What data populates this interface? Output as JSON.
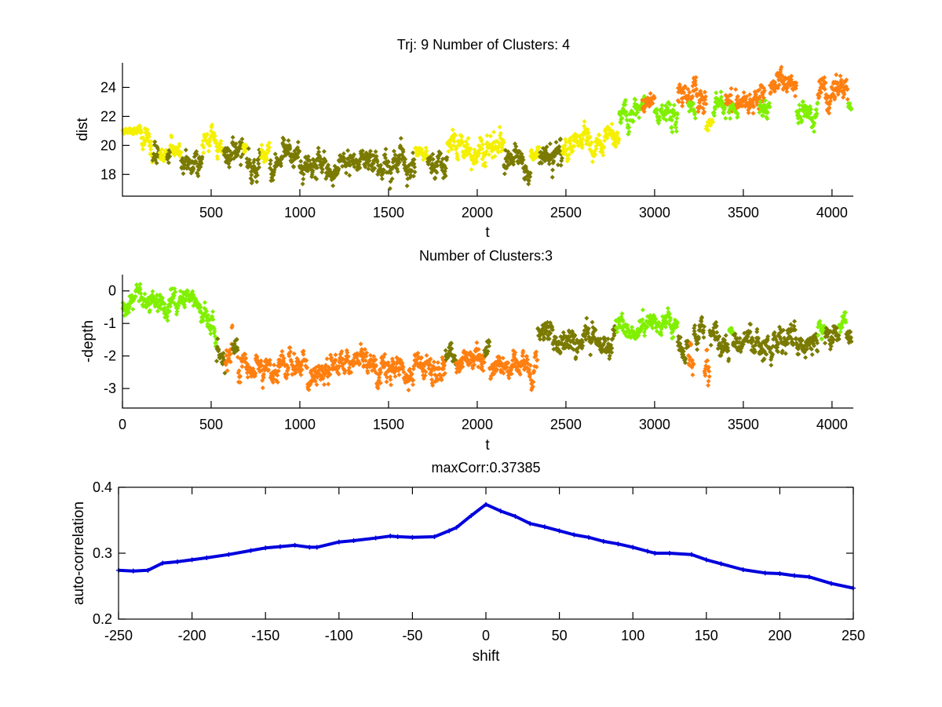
{
  "figure": {
    "background": "#ffffff"
  },
  "chart_data": [
    {
      "type": "scatter",
      "title": "Trj: 9 Number of Clusters: 4",
      "xlabel": "t",
      "ylabel": "dist",
      "xlim": [
        0,
        4120
      ],
      "ylim": [
        16.5,
        25.7
      ],
      "xticks": [
        500,
        1000,
        1500,
        2000,
        2500,
        3000,
        3500,
        4000
      ],
      "xtick_labels": [
        "500",
        "1000",
        "1500",
        "2000",
        "2500",
        "3000",
        "3500",
        "4000"
      ],
      "yticks": [
        18,
        20,
        22,
        24
      ],
      "ytick_labels": [
        "18",
        "20",
        "22",
        "24"
      ],
      "box": false,
      "clusters": [
        {
          "name": "cluster-1",
          "color": "#f5f000"
        },
        {
          "name": "cluster-2",
          "color": "#7a7a00"
        },
        {
          "name": "cluster-3",
          "color": "#80f000"
        },
        {
          "name": "cluster-4",
          "color": "#ff7f10"
        }
      ],
      "segments": [
        {
          "t": [
            0,
            100
          ],
          "y": [
            21.0,
            21.0
          ],
          "spread": 0.15,
          "cluster": 0
        },
        {
          "t": [
            100,
            170
          ],
          "y": [
            20.8,
            19.6
          ],
          "spread": 0.5,
          "cluster": 0
        },
        {
          "t": [
            170,
            210
          ],
          "y": [
            19.0,
            19.0
          ],
          "spread": 0.5,
          "cluster": 1
        },
        {
          "t": [
            210,
            250
          ],
          "y": [
            19.6,
            19.6
          ],
          "spread": 0.4,
          "cluster": 0
        },
        {
          "t": [
            250,
            270
          ],
          "y": [
            19.0,
            19.0
          ],
          "spread": 0.5,
          "cluster": 1
        },
        {
          "t": [
            270,
            330
          ],
          "y": [
            20.2,
            19.6
          ],
          "spread": 0.4,
          "cluster": 0
        },
        {
          "t": [
            330,
            450
          ],
          "y": [
            19.0,
            18.9
          ],
          "spread": 0.5,
          "cluster": 1
        },
        {
          "t": [
            450,
            570
          ],
          "y": [
            19.8,
            19.6
          ],
          "spread": 0.4,
          "cluster": 0
        },
        {
          "t": [
            570,
            680
          ],
          "y": [
            18.9,
            19.2
          ],
          "spread": 0.5,
          "cluster": 1
        },
        {
          "t": [
            680,
            700
          ],
          "y": [
            19.7,
            19.7
          ],
          "spread": 0.3,
          "cluster": 0
        },
        {
          "t": [
            700,
            780
          ],
          "y": [
            18.7,
            18.7
          ],
          "spread": 0.6,
          "cluster": 1
        },
        {
          "t": [
            780,
            830
          ],
          "y": [
            19.6,
            19.6
          ],
          "spread": 0.3,
          "cluster": 0
        },
        {
          "t": [
            830,
            1150
          ],
          "y": [
            18.8,
            18.4
          ],
          "spread": 0.55,
          "cluster": 1
        },
        {
          "t": [
            1150,
            1300
          ],
          "y": [
            18.2,
            18.9
          ],
          "spread": 0.5,
          "cluster": 1
        },
        {
          "t": [
            1300,
            1650
          ],
          "y": [
            19.0,
            18.5
          ],
          "spread": 0.5,
          "cluster": 1
        },
        {
          "t": [
            1650,
            1720
          ],
          "y": [
            19.6,
            19.6
          ],
          "spread": 0.3,
          "cluster": 0
        },
        {
          "t": [
            1720,
            1830
          ],
          "y": [
            18.9,
            18.9
          ],
          "spread": 0.5,
          "cluster": 1
        },
        {
          "t": [
            1830,
            2150
          ],
          "y": [
            20.0,
            20.2
          ],
          "spread": 0.55,
          "cluster": 0
        },
        {
          "t": [
            2150,
            2300
          ],
          "y": [
            19.0,
            18.7
          ],
          "spread": 0.5,
          "cluster": 1
        },
        {
          "t": [
            2300,
            2350
          ],
          "y": [
            19.5,
            19.5
          ],
          "spread": 0.3,
          "cluster": 0
        },
        {
          "t": [
            2350,
            2480
          ],
          "y": [
            18.8,
            19.0
          ],
          "spread": 0.5,
          "cluster": 1
        },
        {
          "t": [
            2480,
            2800
          ],
          "y": [
            19.8,
            21.0
          ],
          "spread": 0.45,
          "cluster": 0
        },
        {
          "t": [
            2800,
            2950
          ],
          "y": [
            22.0,
            22.6
          ],
          "spread": 0.45,
          "cluster": 2
        },
        {
          "t": [
            2930,
            3000
          ],
          "y": [
            23.1,
            23.1
          ],
          "spread": 0.3,
          "cluster": 3
        },
        {
          "t": [
            3000,
            3130
          ],
          "y": [
            22.2,
            21.8
          ],
          "spread": 0.5,
          "cluster": 2
        },
        {
          "t": [
            3130,
            3250
          ],
          "y": [
            23.6,
            23.4
          ],
          "spread": 0.5,
          "cluster": 3
        },
        {
          "t": [
            3190,
            3230
          ],
          "y": [
            22.4,
            22.4
          ],
          "spread": 0.4,
          "cluster": 2
        },
        {
          "t": [
            3250,
            3290
          ],
          "y": [
            23.2,
            23.2
          ],
          "spread": 0.4,
          "cluster": 3
        },
        {
          "t": [
            3290,
            3330
          ],
          "y": [
            21.3,
            21.3
          ],
          "spread": 0.25,
          "cluster": 0
        },
        {
          "t": [
            3330,
            3400
          ],
          "y": [
            22.3,
            22.7
          ],
          "spread": 0.45,
          "cluster": 2
        },
        {
          "t": [
            3400,
            3620
          ],
          "y": [
            23.2,
            23.4
          ],
          "spread": 0.45,
          "cluster": 3
        },
        {
          "t": [
            3420,
            3470
          ],
          "y": [
            22.5,
            22.5
          ],
          "spread": 0.3,
          "cluster": 2
        },
        {
          "t": [
            3590,
            3650
          ],
          "y": [
            22.7,
            22.7
          ],
          "spread": 0.35,
          "cluster": 2
        },
        {
          "t": [
            3650,
            3800
          ],
          "y": [
            24.2,
            23.8
          ],
          "spread": 0.5,
          "cluster": 3
        },
        {
          "t": [
            3800,
            3920
          ],
          "y": [
            22.6,
            22.5
          ],
          "spread": 0.45,
          "cluster": 2
        },
        {
          "t": [
            3920,
            4090
          ],
          "y": [
            23.4,
            23.9
          ],
          "spread": 0.5,
          "cluster": 3
        },
        {
          "t": [
            4090,
            4110
          ],
          "y": [
            22.7,
            22.7
          ],
          "spread": 0.2,
          "cluster": 2
        }
      ]
    },
    {
      "type": "scatter",
      "title": "Number of Clusters:3",
      "xlabel": "t",
      "ylabel": "-depth",
      "xlim": [
        0,
        4120
      ],
      "ylim": [
        -3.6,
        0.5
      ],
      "xticks": [
        0,
        500,
        1000,
        1500,
        2000,
        2500,
        3000,
        3500,
        4000
      ],
      "xtick_labels": [
        "0",
        "500",
        "1000",
        "1500",
        "2000",
        "2500",
        "3000",
        "3500",
        "4000"
      ],
      "yticks": [
        0,
        -1,
        -2,
        -3
      ],
      "ytick_labels": [
        "0",
        "-1",
        "-2",
        "-3"
      ],
      "box": false,
      "clusters": [
        {
          "name": "cluster-1",
          "color": "#80f000"
        },
        {
          "name": "cluster-2",
          "color": "#7a7a00"
        },
        {
          "name": "cluster-3",
          "color": "#ff7f10"
        }
      ],
      "segments": [
        {
          "t": [
            0,
            440
          ],
          "y": [
            -0.3,
            -0.35
          ],
          "spread": 0.2,
          "cluster": 0
        },
        {
          "t": [
            440,
            530
          ],
          "y": [
            -0.7,
            -1.3
          ],
          "spread": 0.2,
          "cluster": 0
        },
        {
          "t": [
            530,
            580
          ],
          "y": [
            -1.8,
            -1.8
          ],
          "spread": 0.25,
          "cluster": 1
        },
        {
          "t": [
            580,
            620
          ],
          "y": [
            -2.2,
            -2.2
          ],
          "spread": 0.25,
          "cluster": 2
        },
        {
          "t": [
            620,
            650
          ],
          "y": [
            -1.8,
            -1.8
          ],
          "spread": 0.2,
          "cluster": 1
        },
        {
          "t": [
            650,
            1820
          ],
          "y": [
            -2.3,
            -2.4
          ],
          "spread": 0.22,
          "cluster": 2
        },
        {
          "t": [
            1820,
            1880
          ],
          "y": [
            -1.9,
            -1.9
          ],
          "spread": 0.2,
          "cluster": 1
        },
        {
          "t": [
            1880,
            2040
          ],
          "y": [
            -2.2,
            -2.2
          ],
          "spread": 0.22,
          "cluster": 2
        },
        {
          "t": [
            2040,
            2070
          ],
          "y": [
            -1.8,
            -1.8
          ],
          "spread": 0.2,
          "cluster": 1
        },
        {
          "t": [
            2070,
            2340
          ],
          "y": [
            -2.3,
            -2.5
          ],
          "spread": 0.22,
          "cluster": 2
        },
        {
          "t": [
            2340,
            2780
          ],
          "y": [
            -1.5,
            -1.5
          ],
          "spread": 0.22,
          "cluster": 1
        },
        {
          "t": [
            2780,
            3130
          ],
          "y": [
            -1.1,
            -1.1
          ],
          "spread": 0.18,
          "cluster": 0
        },
        {
          "t": [
            3130,
            3190
          ],
          "y": [
            -1.6,
            -1.6
          ],
          "spread": 0.22,
          "cluster": 1
        },
        {
          "t": [
            3190,
            3220
          ],
          "y": [
            -2.1,
            -2.1
          ],
          "spread": 0.25,
          "cluster": 2
        },
        {
          "t": [
            3220,
            3280
          ],
          "y": [
            -1.7,
            -1.7
          ],
          "spread": 0.22,
          "cluster": 1
        },
        {
          "t": [
            3280,
            3310
          ],
          "y": [
            -2.2,
            -2.2
          ],
          "spread": 0.25,
          "cluster": 2
        },
        {
          "t": [
            3310,
            3420
          ],
          "y": [
            -1.5,
            -1.6
          ],
          "spread": 0.22,
          "cluster": 1
        },
        {
          "t": [
            3420,
            3440
          ],
          "y": [
            -1.1,
            -1.1
          ],
          "spread": 0.12,
          "cluster": 0
        },
        {
          "t": [
            3440,
            3920
          ],
          "y": [
            -1.75,
            -1.5
          ],
          "spread": 0.22,
          "cluster": 1
        },
        {
          "t": [
            3920,
            3960
          ],
          "y": [
            -1.2,
            -1.2
          ],
          "spread": 0.15,
          "cluster": 0
        },
        {
          "t": [
            3960,
            4040
          ],
          "y": [
            -1.4,
            -1.4
          ],
          "spread": 0.2,
          "cluster": 1
        },
        {
          "t": [
            4040,
            4080
          ],
          "y": [
            -1.15,
            -1.15
          ],
          "spread": 0.15,
          "cluster": 0
        },
        {
          "t": [
            4080,
            4110
          ],
          "y": [
            -1.3,
            -1.3
          ],
          "spread": 0.15,
          "cluster": 1
        }
      ]
    },
    {
      "type": "line",
      "title": "maxCorr:0.37385",
      "xlabel": "shift",
      "ylabel": "auto-correlation",
      "xlim": [
        -250,
        250
      ],
      "ylim": [
        0.2,
        0.4
      ],
      "xticks": [
        -250,
        -200,
        -150,
        -100,
        -50,
        0,
        50,
        100,
        150,
        200,
        250
      ],
      "xtick_labels": [
        "-250",
        "-200",
        "-150",
        "-100",
        "-50",
        "0",
        "50",
        "100",
        "150",
        "200",
        "250"
      ],
      "yticks": [
        0.2,
        0.3,
        0.4
      ],
      "ytick_labels": [
        "0.2",
        "0.3",
        "0.4"
      ],
      "box": true,
      "series": [
        {
          "name": "auto-correlation",
          "color": "#0000dd",
          "x": [
            -250,
            -240,
            -230,
            -220,
            -210,
            -200,
            -190,
            -175,
            -160,
            -150,
            -140,
            -130,
            -120,
            -115,
            -100,
            -90,
            -75,
            -65,
            -60,
            -50,
            -35,
            -25,
            -20,
            -10,
            0,
            10,
            20,
            30,
            40,
            50,
            60,
            70,
            80,
            90,
            100,
            110,
            115,
            125,
            140,
            150,
            160,
            175,
            190,
            200,
            210,
            220,
            235,
            250
          ],
          "y": [
            0.274,
            0.273,
            0.274,
            0.285,
            0.287,
            0.29,
            0.293,
            0.298,
            0.304,
            0.308,
            0.31,
            0.312,
            0.309,
            0.309,
            0.317,
            0.319,
            0.323,
            0.326,
            0.325,
            0.324,
            0.325,
            0.334,
            0.339,
            0.357,
            0.374,
            0.364,
            0.356,
            0.345,
            0.34,
            0.334,
            0.328,
            0.324,
            0.318,
            0.314,
            0.309,
            0.303,
            0.3,
            0.3,
            0.298,
            0.29,
            0.284,
            0.275,
            0.27,
            0.269,
            0.266,
            0.264,
            0.254,
            0.247
          ]
        }
      ]
    }
  ]
}
